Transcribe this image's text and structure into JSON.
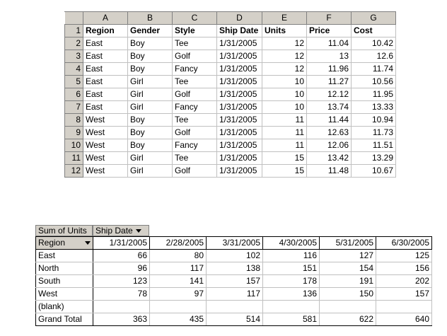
{
  "sheet": {
    "columns": [
      "A",
      "B",
      "C",
      "D",
      "E",
      "F",
      "G"
    ],
    "headers": [
      "Region",
      "Gender",
      "Style",
      "Ship Date",
      "Units",
      "Price",
      "Cost"
    ],
    "rows": [
      [
        "East",
        "Boy",
        "Tee",
        "1/31/2005",
        "12",
        "11.04",
        "10.42"
      ],
      [
        "East",
        "Boy",
        "Golf",
        "1/31/2005",
        "12",
        "13",
        "12.6"
      ],
      [
        "East",
        "Boy",
        "Fancy",
        "1/31/2005",
        "12",
        "11.96",
        "11.74"
      ],
      [
        "East",
        "Girl",
        "Tee",
        "1/31/2005",
        "10",
        "11.27",
        "10.56"
      ],
      [
        "East",
        "Girl",
        "Golf",
        "1/31/2005",
        "10",
        "12.12",
        "11.95"
      ],
      [
        "East",
        "Girl",
        "Fancy",
        "1/31/2005",
        "10",
        "13.74",
        "13.33"
      ],
      [
        "West",
        "Boy",
        "Tee",
        "1/31/2005",
        "11",
        "11.44",
        "10.94"
      ],
      [
        "West",
        "Boy",
        "Golf",
        "1/31/2005",
        "11",
        "12.63",
        "11.73"
      ],
      [
        "West",
        "Boy",
        "Fancy",
        "1/31/2005",
        "11",
        "12.06",
        "11.51"
      ],
      [
        "West",
        "Girl",
        "Tee",
        "1/31/2005",
        "15",
        "13.42",
        "13.29"
      ],
      [
        "West",
        "Girl",
        "Golf",
        "1/31/2005",
        "15",
        "11.48",
        "10.67"
      ]
    ]
  },
  "pivot": {
    "data_field": "Sum of Units",
    "column_field": "Ship Date",
    "row_field": "Region",
    "dates": [
      "1/31/2005",
      "2/28/2005",
      "3/31/2005",
      "4/30/2005",
      "5/31/2005",
      "6/30/2005"
    ],
    "rows": [
      {
        "label": "East",
        "values": [
          "66",
          "80",
          "102",
          "116",
          "127",
          "125"
        ]
      },
      {
        "label": "North",
        "values": [
          "96",
          "117",
          "138",
          "151",
          "154",
          "156"
        ]
      },
      {
        "label": "South",
        "values": [
          "123",
          "141",
          "157",
          "178",
          "191",
          "202"
        ]
      },
      {
        "label": "West",
        "values": [
          "78",
          "97",
          "117",
          "136",
          "150",
          "157"
        ]
      },
      {
        "label": "(blank)",
        "values": [
          "",
          "",
          "",
          "",
          "",
          ""
        ]
      }
    ],
    "grand_total": {
      "label": "Grand Total",
      "values": [
        "363",
        "435",
        "514",
        "581",
        "622",
        "640"
      ]
    }
  }
}
